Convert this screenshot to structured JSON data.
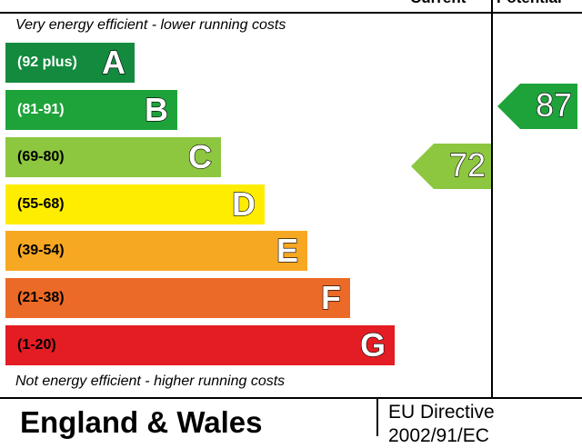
{
  "header": {
    "current_label": "Current",
    "potential_label": "Potential"
  },
  "captions": {
    "top": "Very energy efficient - lower running costs",
    "bottom": "Not energy efficient - higher running costs"
  },
  "bands": [
    {
      "letter": "A",
      "range": "(92 plus)",
      "color": "#138a3e"
    },
    {
      "letter": "B",
      "range": "(81-91)",
      "color": "#1ea33b"
    },
    {
      "letter": "C",
      "range": "(69-80)",
      "color": "#8dc63f"
    },
    {
      "letter": "D",
      "range": "(55-68)",
      "color": "#ffed00"
    },
    {
      "letter": "E",
      "range": "(39-54)",
      "color": "#f7a823"
    },
    {
      "letter": "F",
      "range": "(21-38)",
      "color": "#ec6a27"
    },
    {
      "letter": "G",
      "range": "(1-20)",
      "color": "#e31d23"
    }
  ],
  "ratings": {
    "current": {
      "value": "72",
      "band": "C",
      "color": "#8dc63f"
    },
    "potential": {
      "value": "87",
      "band": "B",
      "color": "#1ea33b"
    }
  },
  "footer": {
    "region": "England & Wales",
    "directive_line1": "EU Directive",
    "directive_line2": "2002/91/EC"
  }
}
